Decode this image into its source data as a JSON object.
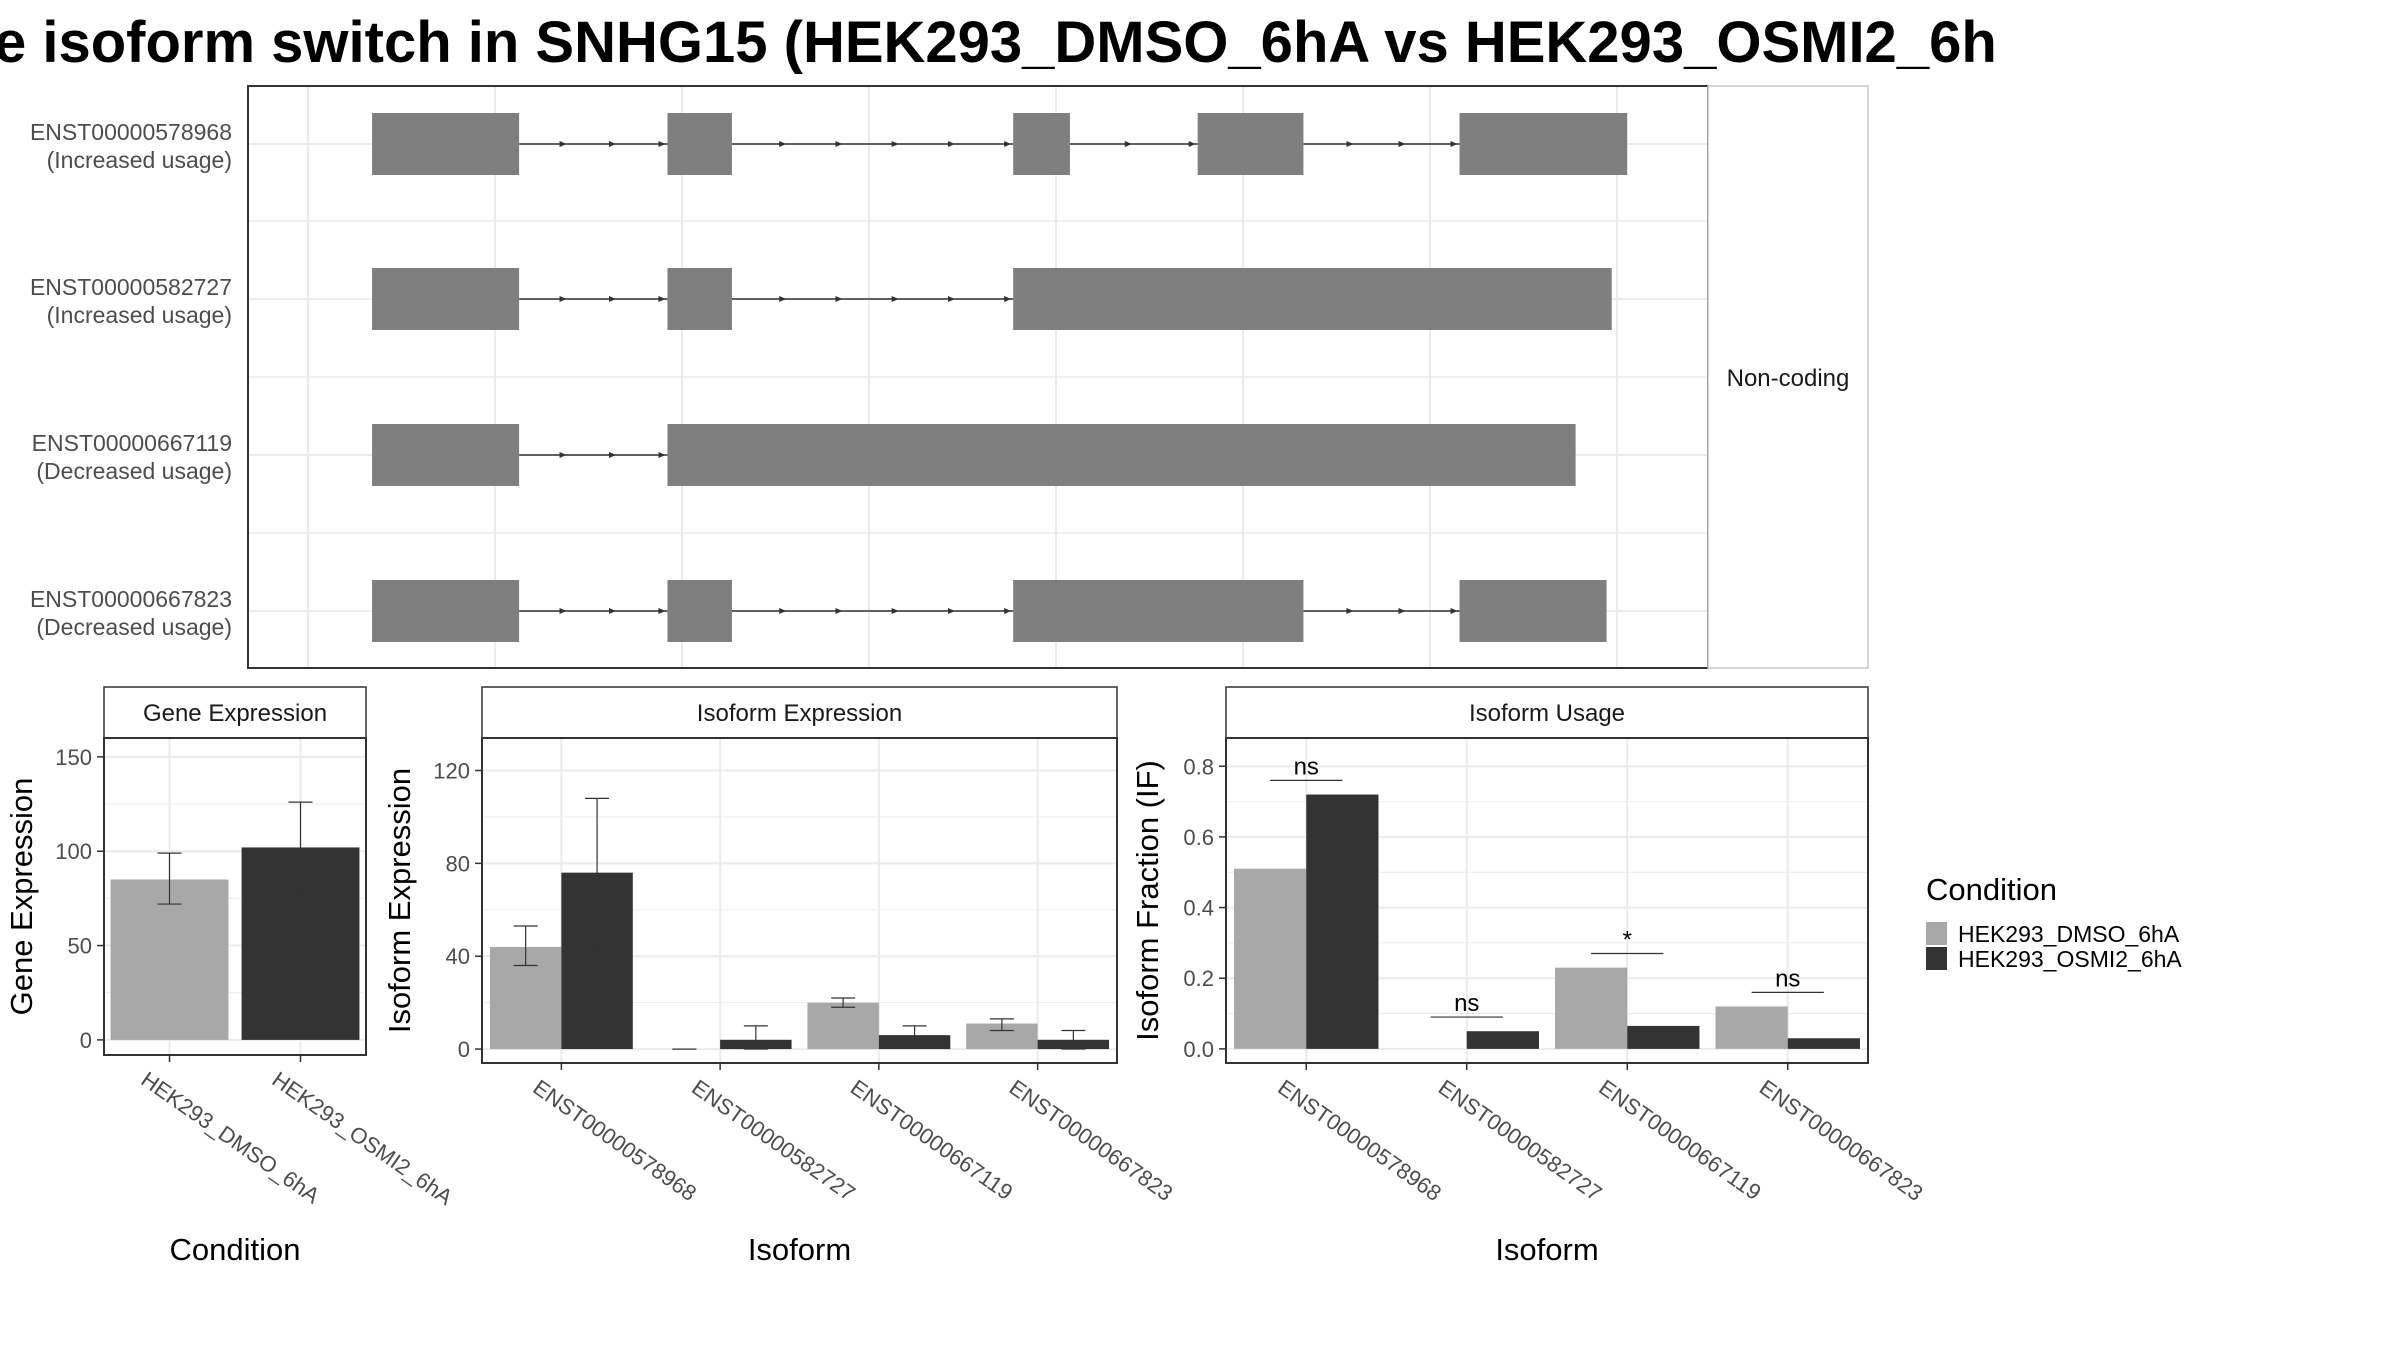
{
  "title": "e isoform switch in SNHG15 (HEK293_DMSO_6hA vs HEK293_OSMI2_6h",
  "colors": {
    "condition_1": "#a8a8a8",
    "condition_2": "#333333",
    "exon": "#7f7f7f",
    "grid": "#ebebeb",
    "panel_border": "#333333",
    "strip_border": "#c8c8c8"
  },
  "chart_data": [
    {
      "type": "gene-structure",
      "strip_label": "Non-coding",
      "transcripts": [
        {
          "id": "ENST00000578968",
          "usage": "(Increased usage)",
          "exons": [
            [
              0.045,
              0.159
            ],
            [
              0.274,
              0.324
            ],
            [
              0.542,
              0.586
            ],
            [
              0.685,
              0.767
            ],
            [
              0.888,
              1.018
            ]
          ]
        },
        {
          "id": "ENST00000582727",
          "usage": "(Increased usage)",
          "exons": [
            [
              0.045,
              0.159
            ],
            [
              0.274,
              0.324
            ],
            [
              0.542,
              1.006
            ]
          ]
        },
        {
          "id": "ENST00000667119",
          "usage": "(Decreased usage)",
          "exons": [
            [
              0.045,
              0.159
            ],
            [
              0.274,
              0.978
            ]
          ]
        },
        {
          "id": "ENST00000667823",
          "usage": "(Decreased usage)",
          "exons": [
            [
              0.045,
              0.159
            ],
            [
              0.274,
              0.324
            ],
            [
              0.542,
              0.767
            ],
            [
              0.888,
              1.002
            ]
          ]
        }
      ]
    },
    {
      "type": "bar",
      "strip_label": "Gene Expression",
      "xlabel": "Condition",
      "ylabel": "Gene Expression",
      "ylim": [
        -8,
        160
      ],
      "yticks": [
        0,
        50,
        100,
        150
      ],
      "categories": [
        "HEK293_DMSO_6hA",
        "HEK293_OSMI2_6hA"
      ],
      "values": [
        85,
        102
      ],
      "errors": [
        [
          72,
          99
        ],
        [
          78,
          126
        ]
      ]
    },
    {
      "type": "bar",
      "strip_label": "Isoform Expression",
      "xlabel": "Isoform",
      "ylabel": "Isoform Expression",
      "ylim": [
        -6,
        134
      ],
      "yticks": [
        0,
        40,
        80,
        120
      ],
      "categories": [
        "ENST00000578968",
        "ENST00000582727",
        "ENST00000667119",
        "ENST00000667823"
      ],
      "series": [
        {
          "name": "HEK293_DMSO_6hA",
          "values": [
            44,
            0,
            20,
            11
          ],
          "errors": [
            [
              36,
              53
            ],
            [
              0,
              0
            ],
            [
              18,
              22
            ],
            [
              8,
              13
            ]
          ]
        },
        {
          "name": "HEK293_OSMI2_6hA",
          "values": [
            76,
            4,
            6,
            4
          ],
          "errors": [
            [
              43,
              108
            ],
            [
              0,
              10
            ],
            [
              2,
              10
            ],
            [
              0,
              8
            ]
          ]
        }
      ]
    },
    {
      "type": "bar",
      "strip_label": "Isoform Usage",
      "xlabel": "Isoform",
      "ylabel": "Isoform Fraction (IF)",
      "ylim": [
        -0.04,
        0.88
      ],
      "yticks": [
        0.0,
        0.2,
        0.4,
        0.6,
        0.8
      ],
      "categories": [
        "ENST00000578968",
        "ENST00000582727",
        "ENST00000667119",
        "ENST00000667823"
      ],
      "series": [
        {
          "name": "HEK293_DMSO_6hA",
          "values": [
            0.51,
            0.0,
            0.23,
            0.12
          ]
        },
        {
          "name": "HEK293_OSMI2_6hA",
          "values": [
            0.72,
            0.05,
            0.065,
            0.03
          ]
        }
      ],
      "significance": [
        {
          "label": "ns",
          "y": 0.76
        },
        {
          "label": "ns",
          "y": 0.09
        },
        {
          "label": "*",
          "y": 0.27
        },
        {
          "label": "ns",
          "y": 0.16
        }
      ]
    }
  ],
  "legend": {
    "title": "Condition",
    "items": [
      "HEK293_DMSO_6hA",
      "HEK293_OSMI2_6hA"
    ]
  }
}
